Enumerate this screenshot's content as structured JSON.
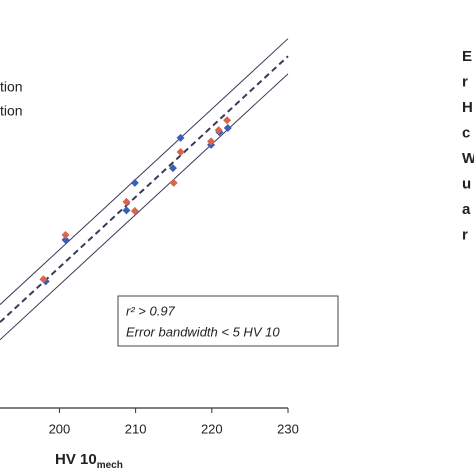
{
  "chart_data": {
    "type": "scatter",
    "xlabel": "HV 10",
    "xlabel_sub": "mech",
    "xlim": [
      192.2,
      230
    ],
    "ylim": [
      180,
      238
    ],
    "xticks": [
      200,
      210,
      220,
      230
    ],
    "series": [
      {
        "name": "tion",
        "color": "#3b5fb5",
        "x": [
          200.8,
          198.2,
          209.9,
          208.8,
          214.9,
          215.9,
          219.9,
          221.0,
          222.1
        ],
        "values": [
          203.9,
          198.0,
          212.0,
          208.1,
          214.1,
          218.4,
          217.4,
          219.2,
          219.8
        ]
      },
      {
        "name": "tion",
        "color": "#d9664c",
        "x": [
          200.8,
          197.9,
          208.8,
          209.9,
          215.0,
          215.9,
          219.9,
          220.9,
          222.0
        ],
        "values": [
          204.6,
          198.3,
          209.3,
          208.0,
          212.0,
          216.4,
          217.9,
          219.5,
          220.9
        ]
      }
    ],
    "reference_lines": [
      {
        "style": "dashed",
        "x": [
          192.2,
          230
        ],
        "values": [
          192.2,
          230
        ]
      },
      {
        "style": "solid",
        "x": [
          192.2,
          230
        ],
        "values": [
          194.7,
          232.5
        ]
      },
      {
        "style": "solid",
        "x": [
          192.2,
          230
        ],
        "values": [
          189.7,
          227.5
        ]
      }
    ],
    "annotation": [
      "r² > 0.97",
      "Error bandwidth < 5 HV 10"
    ],
    "side_text": [
      "E",
      "r",
      "H",
      "c",
      "W",
      "u",
      "a",
      "r"
    ]
  }
}
